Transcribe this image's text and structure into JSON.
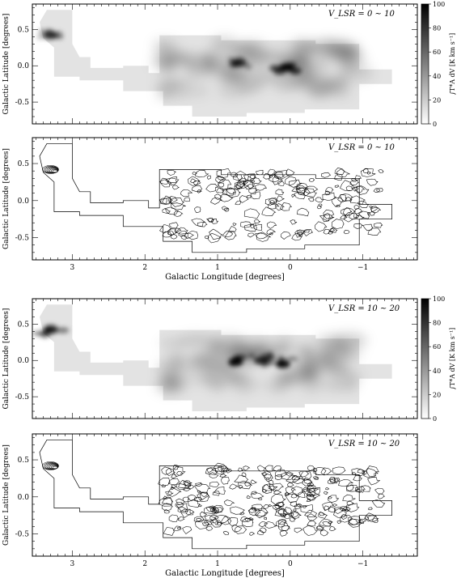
{
  "chart_data": [
    {
      "type": "heatmap",
      "title": "V_LSR = 0 ~ 10",
      "ylabel": "Galactic Latitude [degrees]",
      "xlabel": "",
      "xlim": [
        3.55,
        -1.75
      ],
      "ylim": [
        -0.8,
        0.85
      ],
      "xticks": [
        3,
        2,
        1,
        0,
        -1
      ],
      "yticks": [
        0.5,
        0.0,
        -0.5
      ],
      "ytick_labels": [
        "0.5",
        "0.0",
        "-0.5"
      ],
      "colorbar": {
        "label": "∫T*A dV [K km s⁻¹]",
        "range": [
          0,
          100
        ],
        "ticks": [
          0,
          20,
          40,
          60,
          80,
          100
        ]
      },
      "peaks": [
        {
          "l": 0.05,
          "b": -0.02,
          "value": 100
        },
        {
          "l": 0.7,
          "b": 0.04,
          "value": 60
        },
        {
          "l": 3.3,
          "b": 0.42,
          "value": 70
        }
      ]
    },
    {
      "type": "contour",
      "title": "V_LSR = 0 ~ 10",
      "xlabel": "Galactic Longitude [degrees]",
      "ylabel": "Galactic Latitude [degrees]",
      "xlim": [
        3.55,
        -1.75
      ],
      "ylim": [
        -0.8,
        0.85
      ],
      "xticks": [
        3,
        2,
        1,
        0,
        -1
      ],
      "xtick_labels": [
        "3",
        "2",
        "1",
        "0",
        "−1"
      ],
      "yticks": [
        0.5,
        0.0,
        -0.5
      ],
      "ytick_labels": [
        "0.5",
        "0.0",
        "-0.5"
      ]
    },
    {
      "type": "heatmap",
      "title": "V_LSR = 10 ~ 20",
      "ylabel": "Galactic Latitude [degrees]",
      "xlabel": "",
      "xlim": [
        3.55,
        -1.75
      ],
      "ylim": [
        -0.8,
        0.85
      ],
      "xticks": [
        3,
        2,
        1,
        0,
        -1
      ],
      "yticks": [
        0.5,
        0.0,
        -0.5
      ],
      "ytick_labels": [
        "0.5",
        "0.0",
        "-0.5"
      ],
      "colorbar": {
        "label": "∫T*A dV [K km s⁻¹]",
        "range": [
          0,
          100
        ],
        "ticks": [
          0,
          20,
          40,
          60,
          80,
          100
        ]
      },
      "peaks": [
        {
          "l": 0.75,
          "b": -0.02,
          "value": 100
        },
        {
          "l": 0.1,
          "b": -0.05,
          "value": 95
        },
        {
          "l": 0.4,
          "b": 0.0,
          "value": 70
        },
        {
          "l": 3.3,
          "b": 0.42,
          "value": 75
        }
      ]
    },
    {
      "type": "contour",
      "title": "V_LSR = 10 ~ 20",
      "xlabel": "Galactic Longitude [degrees]",
      "ylabel": "Galactic Latitude [degrees]",
      "xlim": [
        3.55,
        -1.75
      ],
      "ylim": [
        -0.8,
        0.85
      ],
      "xticks": [
        3,
        2,
        1,
        0,
        -1
      ],
      "xtick_labels": [
        "3",
        "2",
        "1",
        "0",
        "−1"
      ],
      "yticks": [
        0.5,
        0.0,
        -0.5
      ],
      "ytick_labels": [
        "0.5",
        "0.0",
        "-0.5"
      ]
    }
  ]
}
